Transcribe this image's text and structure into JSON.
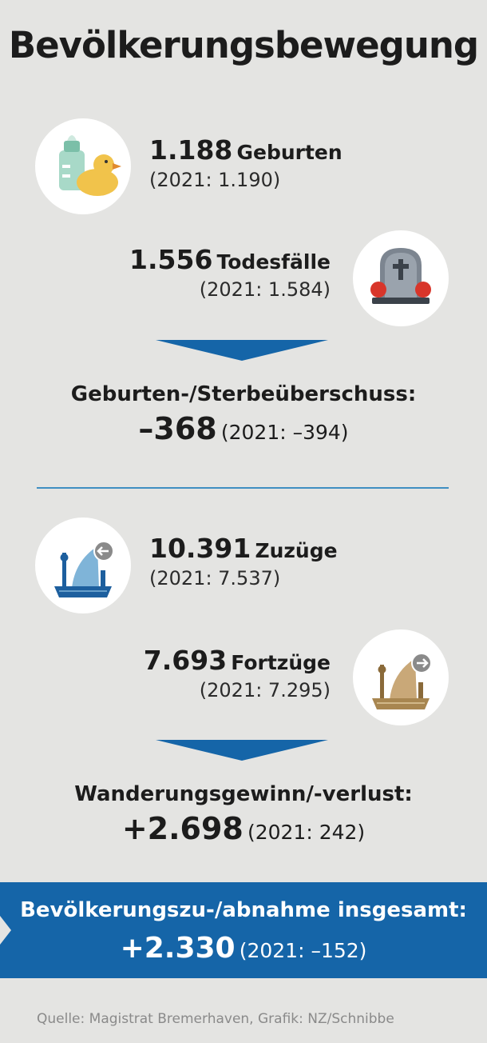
{
  "title": "Bevölkerungsbewegung",
  "births": {
    "value": "1.188",
    "label": "Geburten",
    "previous": "(2021: 1.190)",
    "icon": "baby-bottle-duck-icon"
  },
  "deaths": {
    "value": "1.556",
    "label": "Todesfälle",
    "previous": "(2021: 1.584)",
    "icon": "gravestone-icon"
  },
  "natural_balance": {
    "label": "Geburten-/Sterbeüberschuss:",
    "value": "–368",
    "previous": "(2021: –394)"
  },
  "arrivals": {
    "value": "10.391",
    "label": "Zuzüge",
    "previous": "(2021: 7.537)",
    "icon": "city-arrival-icon"
  },
  "departures": {
    "value": "7.693",
    "label": "Fortzüge",
    "previous": "(2021: 7.295)",
    "icon": "city-departure-icon"
  },
  "migration_balance": {
    "label": "Wanderungsgewinn/-verlust:",
    "value": "+2.698",
    "previous": "(2021: 242)"
  },
  "total": {
    "label": "Bevölkerungszu-/abnahme insgesamt:",
    "value": "+2.330",
    "previous": "(2021: –152)"
  },
  "source": "Quelle: Magistrat Bremerhaven, Grafik: NZ/Schnibbe",
  "colors": {
    "accent_blue": "#1565a8",
    "background": "#e4e4e2",
    "divider": "#3f8ec2"
  }
}
